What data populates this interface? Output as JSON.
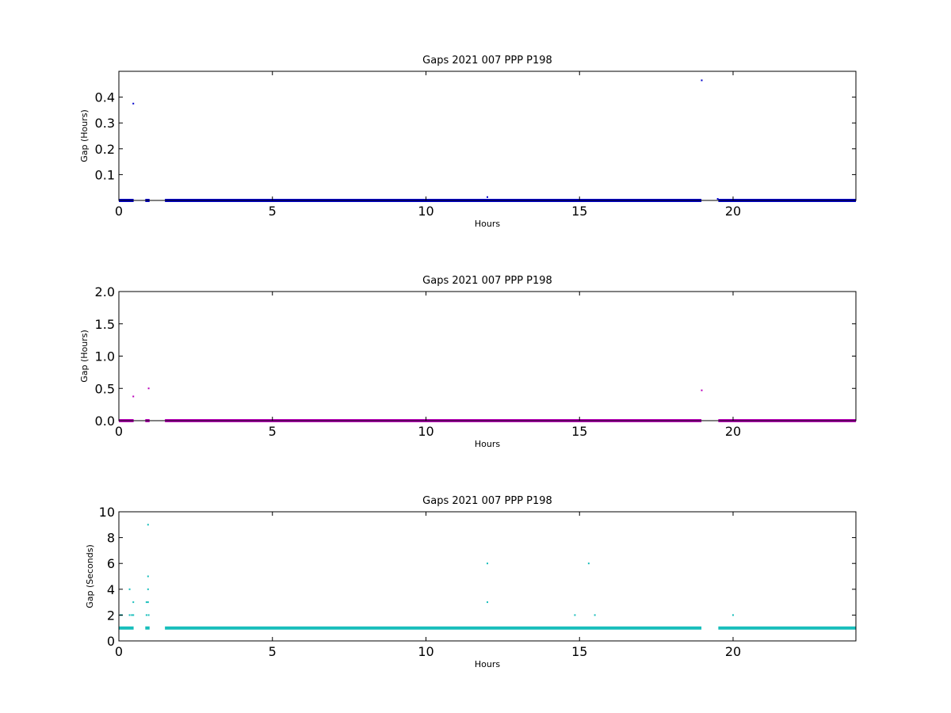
{
  "chart_data": [
    {
      "type": "scatter",
      "title": "Gaps 2021 007 PPP  P198",
      "xlabel": "Hours",
      "ylabel": "Gap (Hours)",
      "xlim": [
        0,
        24
      ],
      "ylim": [
        0,
        0.5
      ],
      "xticks": [
        "0",
        "5",
        "10",
        "15",
        "20"
      ],
      "yticks": [
        "0.1",
        "0.2",
        "0.3",
        "0.4"
      ],
      "grid": false,
      "color": "#0000cc",
      "baseline_runs": [
        [
          0.0,
          0.48,
          0.0
        ],
        [
          0.86,
          1.0,
          0.0
        ],
        [
          1.5,
          18.97,
          0.0
        ],
        [
          19.52,
          24.0,
          0.0
        ]
      ],
      "points": [
        [
          0.47,
          0.375
        ],
        [
          12.0,
          0.013
        ],
        [
          18.98,
          0.465
        ],
        [
          19.5,
          0.006
        ]
      ]
    },
    {
      "type": "scatter",
      "title": "Gaps 2021 007 PPP  P198",
      "xlabel": "Hours",
      "ylabel": "Gap (Hours)",
      "xlim": [
        0,
        24
      ],
      "ylim": [
        0,
        2.0
      ],
      "xticks": [
        "0",
        "5",
        "10",
        "15",
        "20"
      ],
      "yticks": [
        "0.0",
        "0.5",
        "1.0",
        "1.5",
        "2.0"
      ],
      "grid": false,
      "color": "#bb00bb",
      "baseline_runs": [
        [
          0.0,
          0.48,
          0.0
        ],
        [
          0.86,
          1.0,
          0.0
        ],
        [
          1.5,
          18.97,
          0.0
        ],
        [
          19.52,
          24.0,
          0.0
        ]
      ],
      "points": [
        [
          0.47,
          0.375
        ],
        [
          0.97,
          0.5
        ],
        [
          18.98,
          0.47
        ]
      ]
    },
    {
      "type": "scatter",
      "title": "Gaps 2021 007 PPP  P198",
      "xlabel": "Hours",
      "ylabel": "Gap (Seconds)",
      "xlim": [
        0,
        24
      ],
      "ylim": [
        0,
        10
      ],
      "xticks": [
        "0",
        "5",
        "10",
        "15",
        "20"
      ],
      "yticks": [
        "0",
        "2",
        "4",
        "6",
        "8",
        "10"
      ],
      "grid": false,
      "color": "#17bebb",
      "baseline_runs": [
        [
          0.0,
          0.48,
          1.0
        ],
        [
          0.86,
          1.0,
          1.0
        ],
        [
          1.5,
          18.97,
          1.0
        ],
        [
          19.52,
          24.0,
          1.0
        ]
      ],
      "points": [
        [
          0.05,
          2.0
        ],
        [
          0.1,
          2.0
        ],
        [
          0.35,
          4.0
        ],
        [
          0.35,
          2.0
        ],
        [
          0.42,
          2.0
        ],
        [
          0.47,
          3.0
        ],
        [
          0.47,
          2.0
        ],
        [
          0.9,
          3.0
        ],
        [
          0.9,
          2.0
        ],
        [
          0.95,
          9.0
        ],
        [
          0.95,
          5.0
        ],
        [
          0.95,
          4.0
        ],
        [
          0.95,
          3.0
        ],
        [
          0.97,
          2.0
        ],
        [
          12.0,
          6.0
        ],
        [
          12.0,
          3.0
        ],
        [
          14.85,
          2.0
        ],
        [
          15.3,
          6.0
        ],
        [
          15.5,
          2.0
        ],
        [
          20.0,
          2.0
        ]
      ]
    }
  ]
}
